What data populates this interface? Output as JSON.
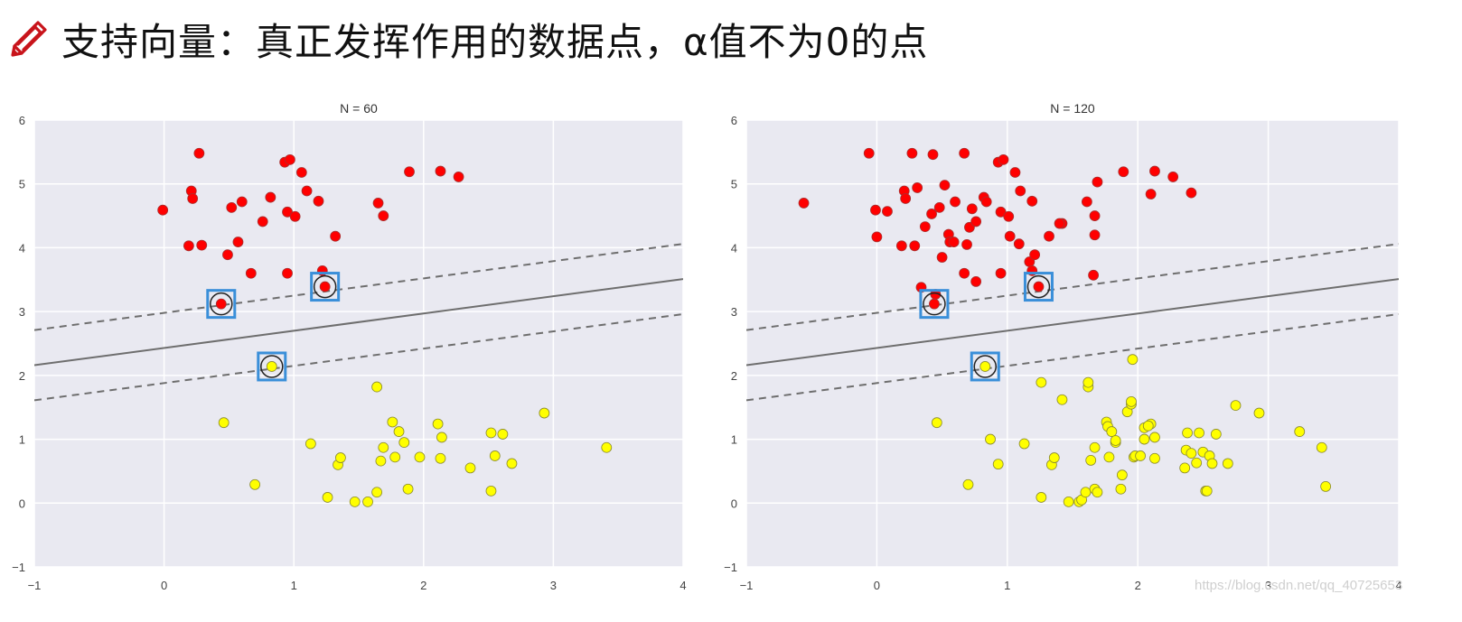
{
  "header": {
    "icon": "pencil-icon",
    "title": "支持向量：真正发挥作用的数据点，α值不为0的点",
    "icon_color": "#c8141b"
  },
  "watermark": "https://blog.csdn.net/qq_40725653",
  "colors": {
    "plot_bg": "#e9e9f1",
    "grid": "#ffffff",
    "class_a": "#ff0000",
    "class_b": "#ffff00",
    "line": "#6e6e6e",
    "highlight_box": "#3a8fd9",
    "support_ring": "#222222"
  },
  "chart_data": [
    {
      "type": "scatter",
      "title": "N = 60",
      "xlabel": "",
      "ylabel": "",
      "xlim": [
        -1,
        4
      ],
      "ylim": [
        -1,
        6
      ],
      "xticks": [
        "-1",
        "0",
        "1",
        "2",
        "3",
        "4"
      ],
      "yticks": [
        "-1",
        "0",
        "1",
        "2",
        "3",
        "4",
        "5",
        "6"
      ],
      "grid": true,
      "legend": null,
      "decision_boundary": {
        "intercept": 2.43,
        "slope": 0.27,
        "margin": 0.55,
        "style": "solid",
        "margin_style": "dashed"
      },
      "support_vectors": [
        [
          0.44,
          3.12
        ],
        [
          1.24,
          3.39
        ],
        [
          0.83,
          2.14
        ]
      ],
      "series": [
        {
          "name": "class_red",
          "color": "#ff0000",
          "points": [
            [
              -0.01,
              4.59
            ],
            [
              0.27,
              5.48
            ],
            [
              0.21,
              4.89
            ],
            [
              0.22,
              4.77
            ],
            [
              0.19,
              4.03
            ],
            [
              0.29,
              4.04
            ],
            [
              0.52,
              4.63
            ],
            [
              0.6,
              4.72
            ],
            [
              0.49,
              3.89
            ],
            [
              0.57,
              4.09
            ],
            [
              0.67,
              3.6
            ],
            [
              0.76,
              4.41
            ],
            [
              0.82,
              4.79
            ],
            [
              0.93,
              5.34
            ],
            [
              0.97,
              5.38
            ],
            [
              1.06,
              5.18
            ],
            [
              1.1,
              4.89
            ],
            [
              0.95,
              4.56
            ],
            [
              1.01,
              4.49
            ],
            [
              1.19,
              4.73
            ],
            [
              0.95,
              3.6
            ],
            [
              1.32,
              4.18
            ],
            [
              1.22,
              3.64
            ],
            [
              1.65,
              4.7
            ],
            [
              1.69,
              4.5
            ],
            [
              1.89,
              5.19
            ],
            [
              2.13,
              5.2
            ],
            [
              2.27,
              5.11
            ],
            [
              0.44,
              3.12
            ],
            [
              1.24,
              3.39
            ]
          ]
        },
        {
          "name": "class_yellow",
          "color": "#ffff00",
          "points": [
            [
              0.46,
              1.26
            ],
            [
              0.83,
              2.14
            ],
            [
              0.7,
              0.29
            ],
            [
              1.13,
              0.93
            ],
            [
              1.26,
              0.09
            ],
            [
              1.34,
              0.6
            ],
            [
              1.36,
              0.71
            ],
            [
              1.47,
              0.02
            ],
            [
              1.57,
              0.02
            ],
            [
              1.64,
              0.17
            ],
            [
              1.64,
              1.82
            ],
            [
              1.67,
              0.66
            ],
            [
              1.69,
              0.87
            ],
            [
              1.76,
              1.27
            ],
            [
              1.78,
              0.72
            ],
            [
              1.81,
              1.12
            ],
            [
              1.85,
              0.95
            ],
            [
              1.88,
              0.22
            ],
            [
              1.97,
              0.72
            ],
            [
              2.11,
              1.24
            ],
            [
              2.14,
              1.03
            ],
            [
              2.13,
              0.7
            ],
            [
              2.36,
              0.55
            ],
            [
              2.52,
              1.1
            ],
            [
              2.52,
              0.19
            ],
            [
              2.55,
              0.74
            ],
            [
              2.61,
              1.08
            ],
            [
              2.68,
              0.62
            ],
            [
              2.93,
              1.41
            ],
            [
              3.41,
              0.87
            ]
          ]
        }
      ]
    },
    {
      "type": "scatter",
      "title": "N = 120",
      "xlabel": "",
      "ylabel": "",
      "xlim": [
        -1,
        4
      ],
      "ylim": [
        -1,
        6
      ],
      "xticks": [
        "-1",
        "0",
        "1",
        "2",
        "3",
        "4"
      ],
      "yticks": [
        "-1",
        "0",
        "1",
        "2",
        "3",
        "4",
        "5",
        "6"
      ],
      "grid": true,
      "legend": null,
      "decision_boundary": {
        "intercept": 2.43,
        "slope": 0.27,
        "margin": 0.55,
        "style": "solid",
        "margin_style": "dashed"
      },
      "support_vectors": [
        [
          0.44,
          3.12
        ],
        [
          1.24,
          3.39
        ],
        [
          0.83,
          2.14
        ]
      ],
      "series": [
        {
          "name": "class_red",
          "color": "#ff0000",
          "points": [
            [
              -0.56,
              4.7
            ],
            [
              -0.06,
              5.48
            ],
            [
              -0.01,
              4.59
            ],
            [
              0.08,
              4.57
            ],
            [
              0.0,
              4.17
            ],
            [
              0.21,
              4.89
            ],
            [
              0.22,
              4.77
            ],
            [
              0.27,
              5.48
            ],
            [
              0.31,
              4.94
            ],
            [
              0.29,
              4.03
            ],
            [
              0.19,
              4.03
            ],
            [
              0.37,
              4.33
            ],
            [
              0.34,
              3.38
            ],
            [
              0.42,
              4.53
            ],
            [
              0.43,
              5.46
            ],
            [
              0.48,
              4.63
            ],
            [
              0.52,
              4.98
            ],
            [
              0.55,
              4.21
            ],
            [
              0.56,
              4.09
            ],
            [
              0.59,
              4.09
            ],
            [
              0.6,
              4.72
            ],
            [
              0.69,
              4.05
            ],
            [
              0.67,
              5.48
            ],
            [
              0.67,
              3.6
            ],
            [
              0.71,
              4.32
            ],
            [
              0.76,
              4.41
            ],
            [
              0.76,
              3.47
            ],
            [
              0.82,
              4.79
            ],
            [
              0.93,
              5.34
            ],
            [
              0.97,
              5.38
            ],
            [
              0.95,
              4.56
            ],
            [
              1.01,
              4.49
            ],
            [
              1.06,
              5.18
            ],
            [
              1.1,
              4.89
            ],
            [
              1.02,
              4.18
            ],
            [
              1.09,
              4.06
            ],
            [
              1.17,
              3.78
            ],
            [
              1.21,
              3.89
            ],
            [
              1.19,
              3.64
            ],
            [
              1.19,
              4.73
            ],
            [
              1.42,
              4.38
            ],
            [
              1.4,
              4.38
            ],
            [
              0.95,
              3.6
            ],
            [
              1.32,
              4.18
            ],
            [
              1.61,
              4.72
            ],
            [
              1.67,
              4.5
            ],
            [
              1.67,
              4.2
            ],
            [
              1.66,
              3.57
            ],
            [
              1.69,
              5.03
            ],
            [
              1.89,
              5.19
            ],
            [
              2.13,
              5.2
            ],
            [
              2.1,
              4.84
            ],
            [
              2.27,
              5.11
            ],
            [
              2.41,
              4.86
            ],
            [
              0.44,
              3.12
            ],
            [
              1.24,
              3.39
            ],
            [
              0.45,
              3.27
            ],
            [
              0.84,
              4.72
            ],
            [
              0.5,
              3.85
            ],
            [
              0.73,
              4.61
            ]
          ]
        },
        {
          "name": "class_yellow",
          "color": "#ffff00",
          "points": [
            [
              0.46,
              1.26
            ],
            [
              0.83,
              2.14
            ],
            [
              0.7,
              0.29
            ],
            [
              0.87,
              1.0
            ],
            [
              0.93,
              0.61
            ],
            [
              1.13,
              0.93
            ],
            [
              1.26,
              1.89
            ],
            [
              1.26,
              0.09
            ],
            [
              1.34,
              0.6
            ],
            [
              1.36,
              0.71
            ],
            [
              1.42,
              1.62
            ],
            [
              1.47,
              0.02
            ],
            [
              1.55,
              0.02
            ],
            [
              1.57,
              0.05
            ],
            [
              1.62,
              1.82
            ],
            [
              1.62,
              1.89
            ],
            [
              1.6,
              0.17
            ],
            [
              1.64,
              0.67
            ],
            [
              1.67,
              0.87
            ],
            [
              1.67,
              0.22
            ],
            [
              1.69,
              0.17
            ],
            [
              1.76,
              1.27
            ],
            [
              1.77,
              1.2
            ],
            [
              1.78,
              0.72
            ],
            [
              1.8,
              1.12
            ],
            [
              1.83,
              0.95
            ],
            [
              1.83,
              0.98
            ],
            [
              1.87,
              0.22
            ],
            [
              1.88,
              0.44
            ],
            [
              1.92,
              1.43
            ],
            [
              1.95,
              1.55
            ],
            [
              1.95,
              1.59
            ],
            [
              1.96,
              2.25
            ],
            [
              1.97,
              0.72
            ],
            [
              1.98,
              0.74
            ],
            [
              2.02,
              0.74
            ],
            [
              2.05,
              1.18
            ],
            [
              2.05,
              1.0
            ],
            [
              2.1,
              1.24
            ],
            [
              2.08,
              1.21
            ],
            [
              2.13,
              1.03
            ],
            [
              2.13,
              0.7
            ],
            [
              2.36,
              0.55
            ],
            [
              2.37,
              0.83
            ],
            [
              2.38,
              1.1
            ],
            [
              2.41,
              0.78
            ],
            [
              2.47,
              1.1
            ],
            [
              2.5,
              0.8
            ],
            [
              2.52,
              0.19
            ],
            [
              2.53,
              0.19
            ],
            [
              2.55,
              0.74
            ],
            [
              2.6,
              1.08
            ],
            [
              2.69,
              0.62
            ],
            [
              2.75,
              1.53
            ],
            [
              2.93,
              1.41
            ],
            [
              3.24,
              1.12
            ],
            [
              3.41,
              0.87
            ],
            [
              3.44,
              0.26
            ],
            [
              2.57,
              0.62
            ],
            [
              2.45,
              0.63
            ]
          ]
        }
      ]
    }
  ]
}
